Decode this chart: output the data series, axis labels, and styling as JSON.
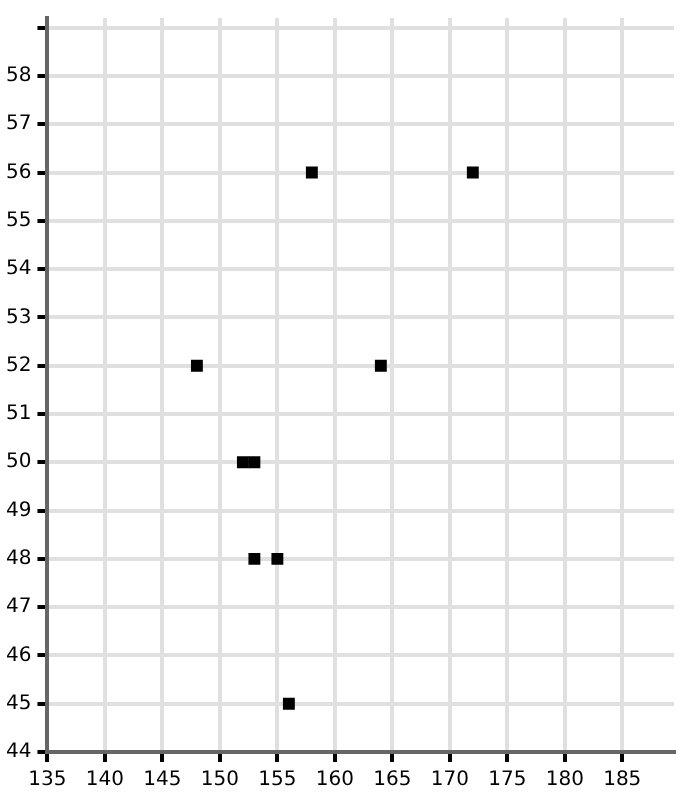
{
  "chart_data": {
    "type": "scatter",
    "x": [
      158,
      172,
      148,
      164,
      152,
      153,
      153,
      155,
      156
    ],
    "series": [
      {
        "color": "#000000",
        "values": [
          56,
          56,
          52,
          52,
          50,
          50,
          48,
          48,
          45
        ]
      }
    ],
    "xlim": [
      135,
      189.5
    ],
    "ylim": [
      44,
      59.2
    ],
    "xticks": [
      135,
      140,
      145,
      150,
      155,
      160,
      165,
      170,
      175,
      180,
      185
    ],
    "yticks": [
      44,
      45,
      46,
      47,
      48,
      49,
      50,
      51,
      52,
      53,
      54,
      55,
      56,
      57,
      58,
      {
        "value": 59,
        "label": null
      }
    ],
    "grid": true,
    "marker": "square",
    "legend": false
  }
}
